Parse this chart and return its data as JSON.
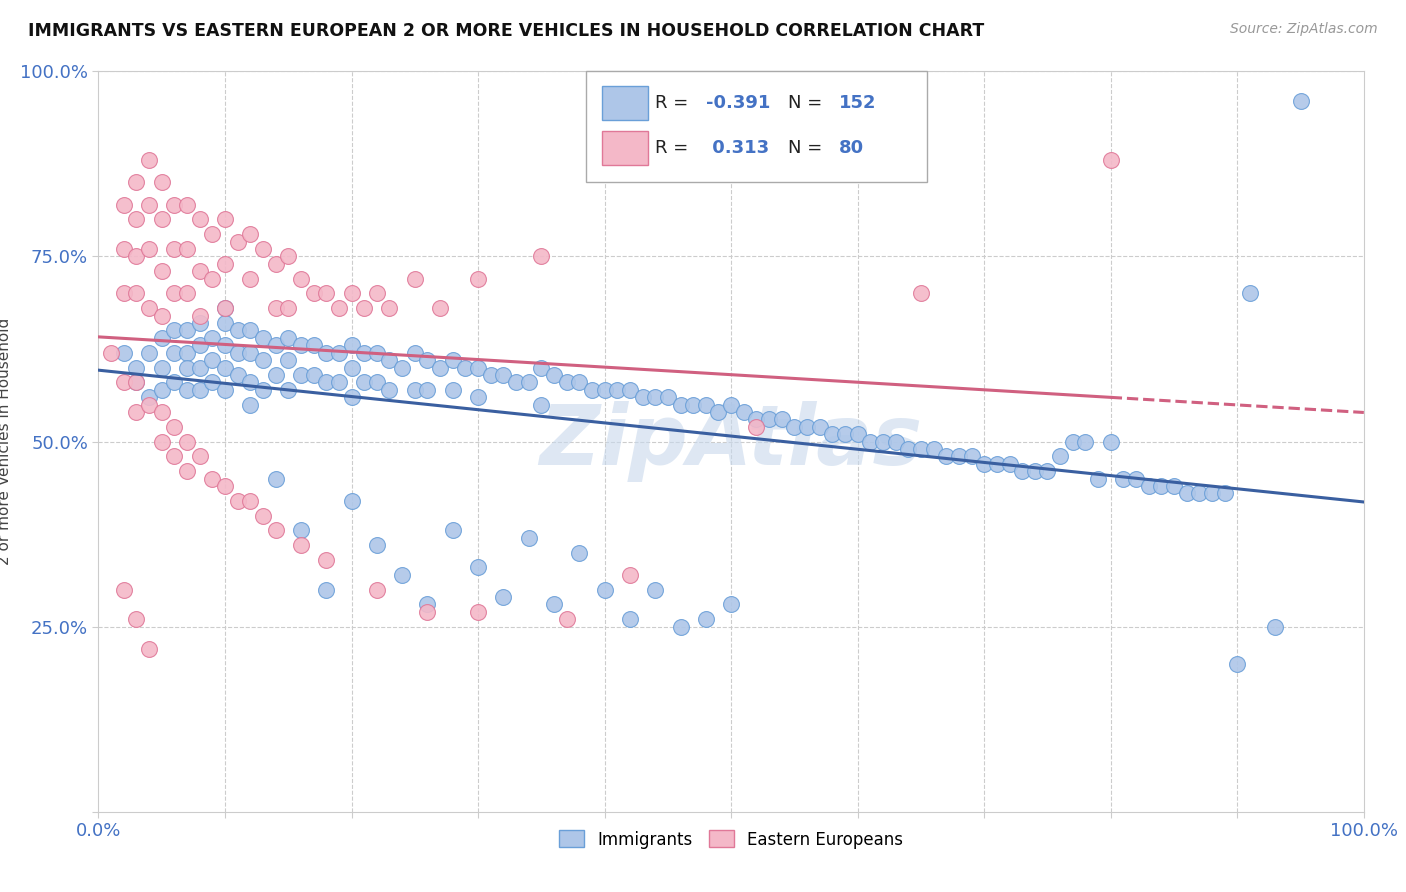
{
  "title": "IMMIGRANTS VS EASTERN EUROPEAN 2 OR MORE VEHICLES IN HOUSEHOLD CORRELATION CHART",
  "source": "Source: ZipAtlas.com",
  "ylabel": "2 or more Vehicles in Household",
  "xlim": [
    0.0,
    1.0
  ],
  "ylim": [
    0.0,
    1.0
  ],
  "blue_R": -0.391,
  "blue_N": 152,
  "pink_R": 0.313,
  "pink_N": 80,
  "blue_color": "#aec6e8",
  "pink_color": "#f4b8c8",
  "blue_edge_color": "#6a9fd8",
  "pink_edge_color": "#e07898",
  "blue_line_color": "#3a5fa0",
  "pink_line_color": "#d06080",
  "watermark": "ZipAtlas",
  "watermark_color": "#c8d8ec",
  "legend_blue_label": "Immigrants",
  "legend_pink_label": "Eastern Europeans",
  "blue_x": [
    0.02,
    0.03,
    0.03,
    0.04,
    0.04,
    0.05,
    0.05,
    0.05,
    0.06,
    0.06,
    0.06,
    0.07,
    0.07,
    0.07,
    0.07,
    0.08,
    0.08,
    0.08,
    0.08,
    0.09,
    0.09,
    0.09,
    0.1,
    0.1,
    0.1,
    0.1,
    0.11,
    0.11,
    0.11,
    0.12,
    0.12,
    0.12,
    0.13,
    0.13,
    0.13,
    0.14,
    0.14,
    0.15,
    0.15,
    0.15,
    0.16,
    0.16,
    0.17,
    0.17,
    0.18,
    0.18,
    0.19,
    0.19,
    0.2,
    0.2,
    0.2,
    0.21,
    0.21,
    0.22,
    0.22,
    0.23,
    0.23,
    0.24,
    0.25,
    0.25,
    0.26,
    0.26,
    0.27,
    0.28,
    0.28,
    0.29,
    0.3,
    0.3,
    0.31,
    0.32,
    0.33,
    0.34,
    0.35,
    0.35,
    0.36,
    0.37,
    0.38,
    0.39,
    0.4,
    0.41,
    0.42,
    0.43,
    0.44,
    0.45,
    0.46,
    0.47,
    0.48,
    0.49,
    0.5,
    0.51,
    0.52,
    0.53,
    0.54,
    0.55,
    0.56,
    0.57,
    0.58,
    0.59,
    0.6,
    0.61,
    0.62,
    0.63,
    0.64,
    0.65,
    0.66,
    0.67,
    0.68,
    0.69,
    0.7,
    0.71,
    0.72,
    0.73,
    0.74,
    0.75,
    0.76,
    0.77,
    0.78,
    0.79,
    0.8,
    0.81,
    0.82,
    0.83,
    0.84,
    0.85,
    0.86,
    0.87,
    0.88,
    0.89,
    0.9,
    0.91,
    0.93,
    0.95,
    0.1,
    0.12,
    0.14,
    0.16,
    0.18,
    0.2,
    0.22,
    0.24,
    0.26,
    0.28,
    0.3,
    0.32,
    0.34,
    0.36,
    0.38,
    0.4,
    0.42,
    0.44,
    0.46,
    0.48,
    0.5
  ],
  "blue_y": [
    0.62,
    0.6,
    0.58,
    0.62,
    0.56,
    0.64,
    0.6,
    0.57,
    0.65,
    0.62,
    0.58,
    0.65,
    0.62,
    0.6,
    0.57,
    0.66,
    0.63,
    0.6,
    0.57,
    0.64,
    0.61,
    0.58,
    0.66,
    0.63,
    0.6,
    0.57,
    0.65,
    0.62,
    0.59,
    0.65,
    0.62,
    0.58,
    0.64,
    0.61,
    0.57,
    0.63,
    0.59,
    0.64,
    0.61,
    0.57,
    0.63,
    0.59,
    0.63,
    0.59,
    0.62,
    0.58,
    0.62,
    0.58,
    0.63,
    0.6,
    0.56,
    0.62,
    0.58,
    0.62,
    0.58,
    0.61,
    0.57,
    0.6,
    0.62,
    0.57,
    0.61,
    0.57,
    0.6,
    0.61,
    0.57,
    0.6,
    0.6,
    0.56,
    0.59,
    0.59,
    0.58,
    0.58,
    0.6,
    0.55,
    0.59,
    0.58,
    0.58,
    0.57,
    0.57,
    0.57,
    0.57,
    0.56,
    0.56,
    0.56,
    0.55,
    0.55,
    0.55,
    0.54,
    0.55,
    0.54,
    0.53,
    0.53,
    0.53,
    0.52,
    0.52,
    0.52,
    0.51,
    0.51,
    0.51,
    0.5,
    0.5,
    0.5,
    0.49,
    0.49,
    0.49,
    0.48,
    0.48,
    0.48,
    0.47,
    0.47,
    0.47,
    0.46,
    0.46,
    0.46,
    0.48,
    0.5,
    0.5,
    0.45,
    0.5,
    0.45,
    0.45,
    0.44,
    0.44,
    0.44,
    0.43,
    0.43,
    0.43,
    0.43,
    0.2,
    0.7,
    0.25,
    0.96,
    0.68,
    0.55,
    0.45,
    0.38,
    0.3,
    0.42,
    0.36,
    0.32,
    0.28,
    0.38,
    0.33,
    0.29,
    0.37,
    0.28,
    0.35,
    0.3,
    0.26,
    0.3,
    0.25,
    0.26,
    0.28
  ],
  "pink_x": [
    0.01,
    0.02,
    0.02,
    0.02,
    0.03,
    0.03,
    0.03,
    0.03,
    0.04,
    0.04,
    0.04,
    0.04,
    0.05,
    0.05,
    0.05,
    0.05,
    0.06,
    0.06,
    0.06,
    0.07,
    0.07,
    0.07,
    0.08,
    0.08,
    0.08,
    0.09,
    0.09,
    0.1,
    0.1,
    0.1,
    0.11,
    0.12,
    0.12,
    0.13,
    0.14,
    0.14,
    0.15,
    0.15,
    0.16,
    0.17,
    0.18,
    0.19,
    0.2,
    0.21,
    0.22,
    0.23,
    0.25,
    0.27,
    0.3,
    0.35,
    0.02,
    0.03,
    0.03,
    0.04,
    0.05,
    0.05,
    0.06,
    0.06,
    0.07,
    0.07,
    0.08,
    0.09,
    0.1,
    0.11,
    0.12,
    0.13,
    0.14,
    0.16,
    0.18,
    0.22,
    0.26,
    0.3,
    0.37,
    0.42,
    0.52,
    0.65,
    0.8,
    0.02,
    0.03,
    0.04
  ],
  "pink_y": [
    0.62,
    0.82,
    0.76,
    0.7,
    0.85,
    0.8,
    0.75,
    0.7,
    0.88,
    0.82,
    0.76,
    0.68,
    0.85,
    0.8,
    0.73,
    0.67,
    0.82,
    0.76,
    0.7,
    0.82,
    0.76,
    0.7,
    0.8,
    0.73,
    0.67,
    0.78,
    0.72,
    0.8,
    0.74,
    0.68,
    0.77,
    0.78,
    0.72,
    0.76,
    0.74,
    0.68,
    0.75,
    0.68,
    0.72,
    0.7,
    0.7,
    0.68,
    0.7,
    0.68,
    0.7,
    0.68,
    0.72,
    0.68,
    0.72,
    0.75,
    0.58,
    0.58,
    0.54,
    0.55,
    0.54,
    0.5,
    0.52,
    0.48,
    0.5,
    0.46,
    0.48,
    0.45,
    0.44,
    0.42,
    0.42,
    0.4,
    0.38,
    0.36,
    0.34,
    0.3,
    0.27,
    0.27,
    0.26,
    0.32,
    0.52,
    0.7,
    0.88,
    0.3,
    0.26,
    0.22
  ]
}
